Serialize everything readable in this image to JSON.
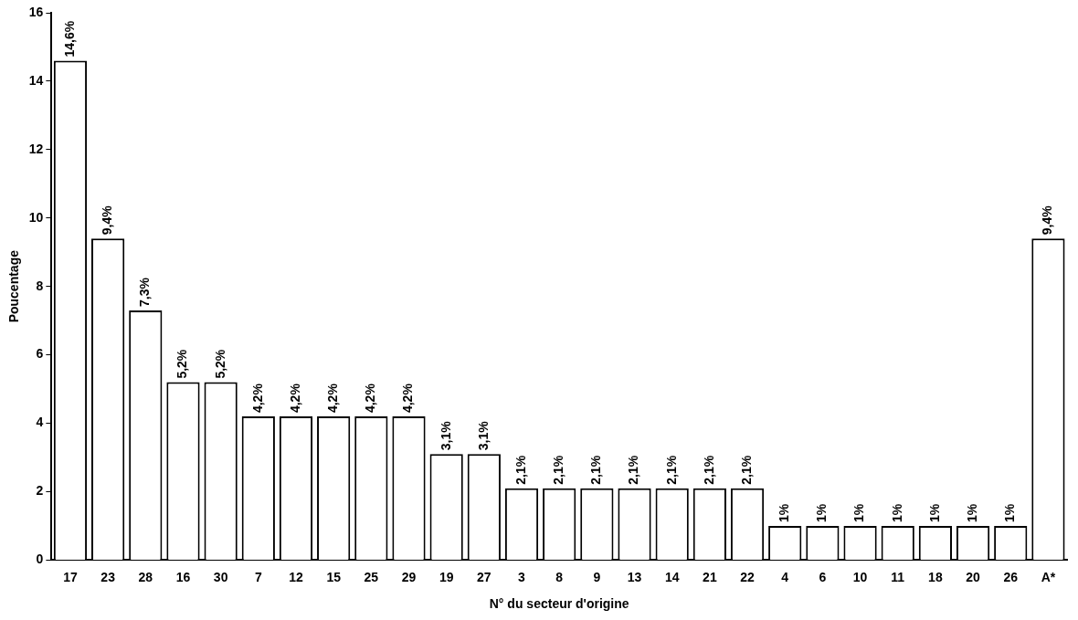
{
  "chart_data": {
    "type": "bar",
    "xlabel": "N° du secteur d'origine",
    "ylabel": "Poucentage",
    "categories": [
      "17",
      "23",
      "28",
      "16",
      "30",
      "7",
      "12",
      "15",
      "25",
      "29",
      "19",
      "27",
      "3",
      "8",
      "9",
      "13",
      "14",
      "21",
      "22",
      "4",
      "6",
      "10",
      "11",
      "18",
      "20",
      "26",
      "A*"
    ],
    "values": [
      14.6,
      9.4,
      7.3,
      5.2,
      5.2,
      4.2,
      4.2,
      4.2,
      4.2,
      4.2,
      3.1,
      3.1,
      2.1,
      2.1,
      2.1,
      2.1,
      2.1,
      2.1,
      2.1,
      1,
      1,
      1,
      1,
      1,
      1,
      1,
      9.4
    ],
    "value_labels": [
      "14,6%",
      "9,4%",
      "7,3%",
      "5,2%",
      "5,2%",
      "4,2%",
      "4,2%",
      "4,2%",
      "4,2%",
      "4,2%",
      "3,1%",
      "3,1%",
      "2,1%",
      "2,1%",
      "2,1%",
      "2,1%",
      "2,1%",
      "2,1%",
      "2,1%",
      "1%",
      "1%",
      "1%",
      "1%",
      "1%",
      "1%",
      "1%",
      "9,4%"
    ],
    "color": "#ffffff",
    "ylim": [
      0,
      16
    ],
    "yticks": [
      0,
      2,
      4,
      6,
      8,
      10,
      12,
      14,
      16
    ],
    "grid": false,
    "legend": false
  }
}
